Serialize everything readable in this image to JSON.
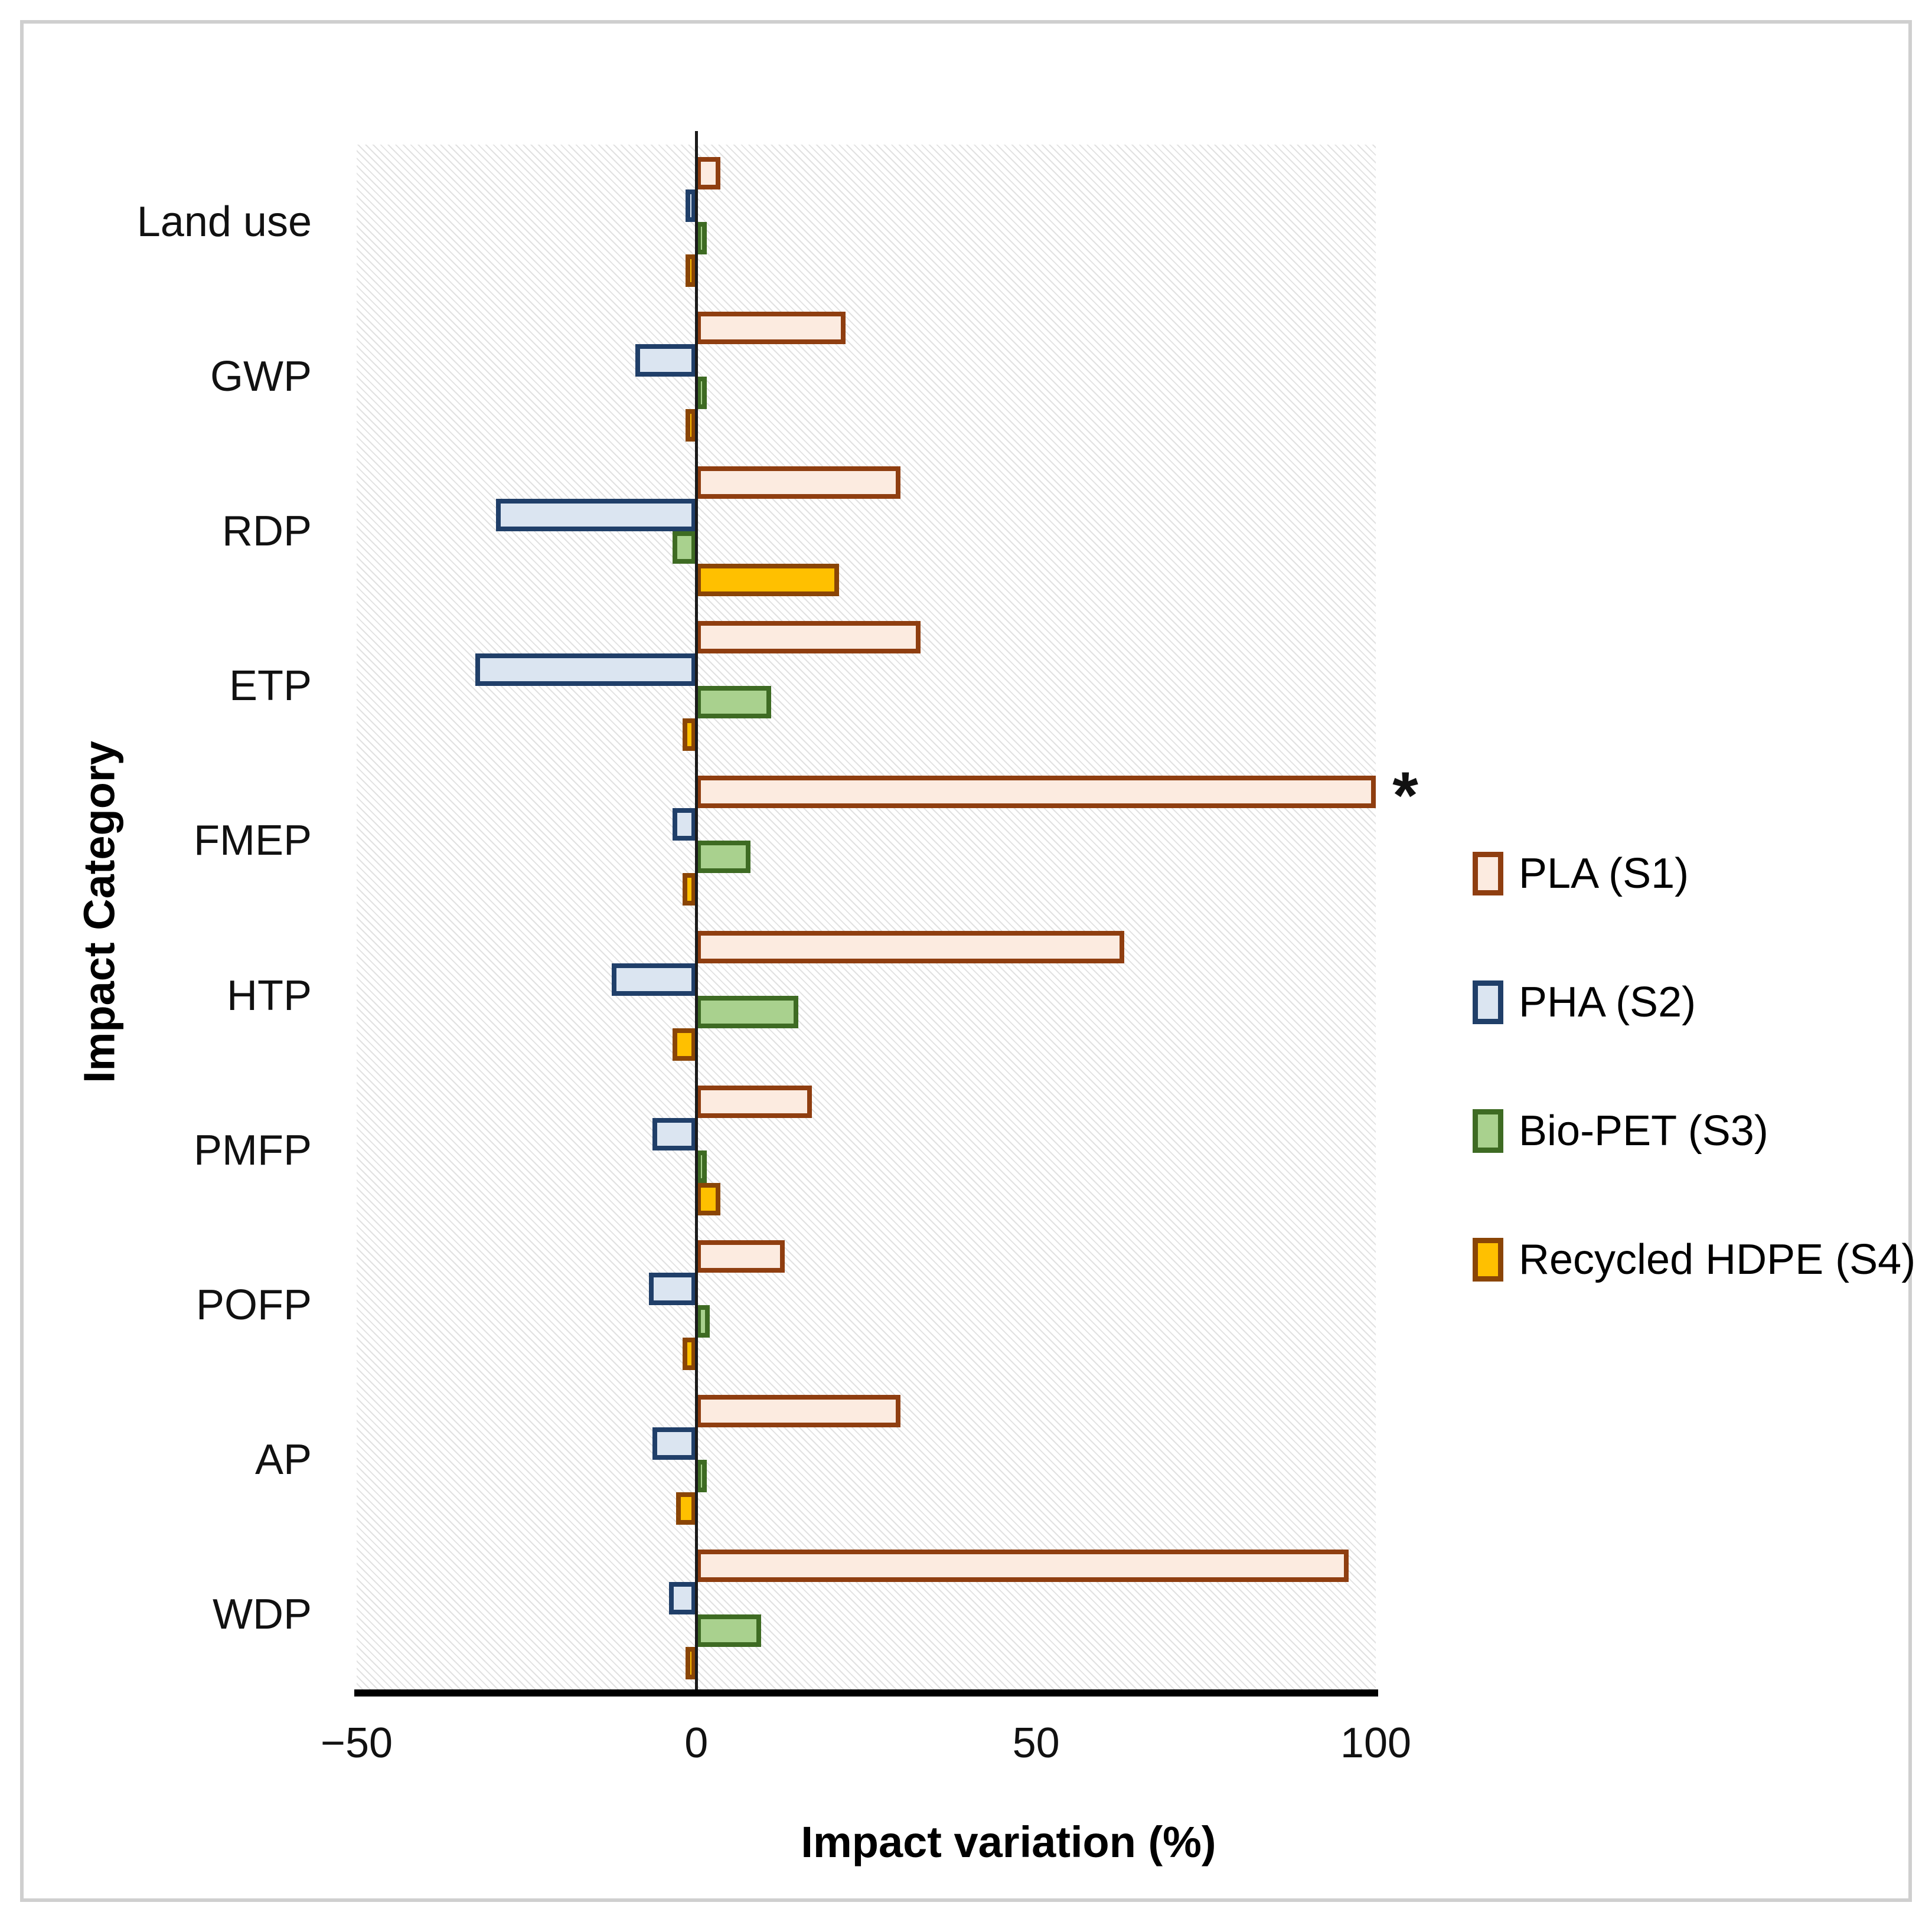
{
  "figure": {
    "x_axis_title": "Impact variation (%)",
    "y_axis_title": "Impact Category",
    "x_tick_labels": [
      "−50",
      "0",
      "50",
      "100"
    ],
    "frame_border_color": "#cfcfcf",
    "axis_line_color": "#000000",
    "plot_hatch_color": "#d9d9d9"
  },
  "chart_data": {
    "type": "bar",
    "orientation": "horizontal",
    "title": "",
    "xlabel": "Impact variation (%)",
    "ylabel": "Impact Category",
    "xlim": [
      -50,
      100
    ],
    "xticks": [
      -50,
      0,
      50,
      100
    ],
    "grid": false,
    "legend_position": "right",
    "plot_background": "light diagonal hatch",
    "categories": [
      "Land use",
      "GWP",
      "RDP",
      "ETP",
      "FMEP",
      "HTP",
      "PMFP",
      "POFP",
      "AP",
      "WDP"
    ],
    "series": [
      {
        "name": "PLA (S1)",
        "fill": "#fcebe0",
        "border": "#8f3e10",
        "values": [
          3.5,
          22,
          30,
          33,
          100,
          63,
          17,
          13,
          30,
          96
        ]
      },
      {
        "name": "PHA (S2)",
        "fill": "#dbe5f1",
        "border": "#203f69",
        "values": [
          -1,
          -9,
          -29.5,
          -32.5,
          -3.5,
          -12.5,
          -6.5,
          -7,
          -6.5,
          -4
        ]
      },
      {
        "name": "Bio-PET (S3)",
        "fill": "#a9d18e",
        "border": "#3e6b23",
        "values": [
          0.5,
          1,
          -3.5,
          11,
          8,
          15,
          1,
          2,
          1,
          9.5
        ]
      },
      {
        "name": "Recycled HDPE (S4)",
        "fill": "#ffc000",
        "border": "#8a4506",
        "values": [
          -0.5,
          -0.5,
          21,
          -2,
          -2,
          -3.5,
          3.5,
          -2,
          -3,
          -0.5
        ]
      }
    ],
    "annotation": {
      "text": "*",
      "category": "FMEP",
      "series": "PLA (S1)"
    }
  }
}
